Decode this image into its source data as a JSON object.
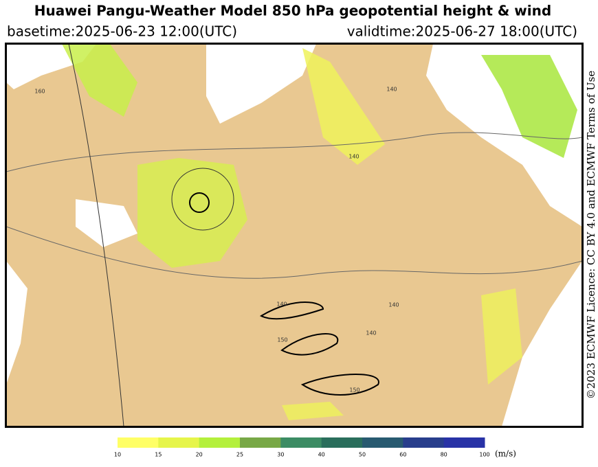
{
  "header": {
    "title": "Huawei Pangu-Weather Model 850 hPa geopotential height & wind",
    "basetime": "basetime:2025-06-23 12:00(UTC)",
    "validtime": "validtime:2025-06-27 18:00(UTC)"
  },
  "licence": "©2023 ECMWF Licence: CC BY 4.0 and ECMWF Terms of Use",
  "map": {
    "contour_labels": [
      "160",
      "140",
      "140",
      "140",
      "150",
      "140",
      "140",
      "150"
    ]
  },
  "colorbar": {
    "ticks": [
      10,
      15,
      20,
      25,
      30,
      40,
      50,
      60,
      80,
      100
    ],
    "colors": [
      "#ffff66",
      "#e6f54a",
      "#b4f03c",
      "#78a846",
      "#3c8c64",
      "#2a6e5c",
      "#285a70",
      "#283e8c",
      "#2832a6"
    ],
    "unit": "(m/s)"
  }
}
